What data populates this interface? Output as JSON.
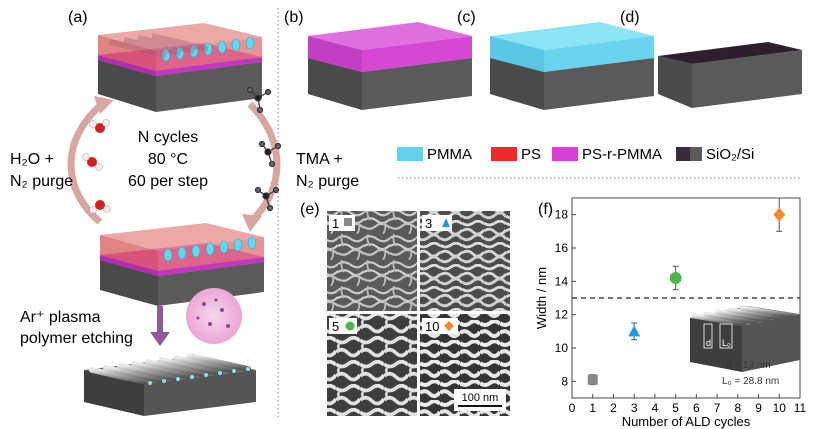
{
  "panels": {
    "a": "(a)",
    "b": "(b)",
    "c": "(c)",
    "d": "(d)",
    "e": "(e)",
    "f": "(f)"
  },
  "cycle": {
    "line1": "N cycles",
    "line2": "80 °C",
    "line3": "60 per step",
    "left_line1": "H₂O +",
    "left_line2": "N₂ purge",
    "right_line1": "TMA +",
    "right_line2": "N₂ purge"
  },
  "etch": {
    "line1": "Ar⁺ plasma",
    "line2": "polymer etching"
  },
  "legend": [
    {
      "label": "PMMA",
      "color": "#5fd3ee"
    },
    {
      "label": "PS",
      "color": "#ee2a2a"
    },
    {
      "label": "PS-r-PMMA",
      "color": "#d640d6"
    },
    {
      "label": "SiO₂/Si",
      "color": "#3a2a3a"
    }
  ],
  "sem": {
    "tiles": [
      {
        "label": "1",
        "marker": "square",
        "color": "#888888"
      },
      {
        "label": "3",
        "marker": "triangle",
        "color": "#1e9be8"
      },
      {
        "label": "5",
        "marker": "circle",
        "color": "#4cb848"
      },
      {
        "label": "10",
        "marker": "diamond",
        "color": "#f08a2a"
      }
    ],
    "scalebar": "100 nm"
  },
  "chart_data": {
    "type": "scatter",
    "xlabel": "Number of ALD cycles",
    "ylabel": "Width / nm",
    "xlim": [
      0,
      11
    ],
    "ylim": [
      7,
      19
    ],
    "xticks": [
      "0",
      "1",
      "2",
      "3",
      "4",
      "5",
      "6",
      "7",
      "8",
      "9",
      "10",
      "11"
    ],
    "yticks": [
      "8",
      "10",
      "12",
      "14",
      "16",
      "18"
    ],
    "points": [
      {
        "x": 1,
        "y": 8.1,
        "err": 0.3,
        "marker": "square",
        "color": "#888888"
      },
      {
        "x": 3,
        "y": 11.0,
        "err": 0.5,
        "marker": "triangle",
        "color": "#1e9be8"
      },
      {
        "x": 5,
        "y": 14.2,
        "err": 0.7,
        "marker": "circle",
        "color": "#4cb848"
      },
      {
        "x": 10,
        "y": 18.0,
        "err": 1.0,
        "marker": "diamond",
        "color": "#f08a2a"
      }
    ],
    "reference_line": 13.0,
    "inset": {
      "label_d": "d",
      "label_L": "L₀",
      "text1": "d = 13 nm",
      "text2": "L₀ = 28.8 nm"
    }
  }
}
